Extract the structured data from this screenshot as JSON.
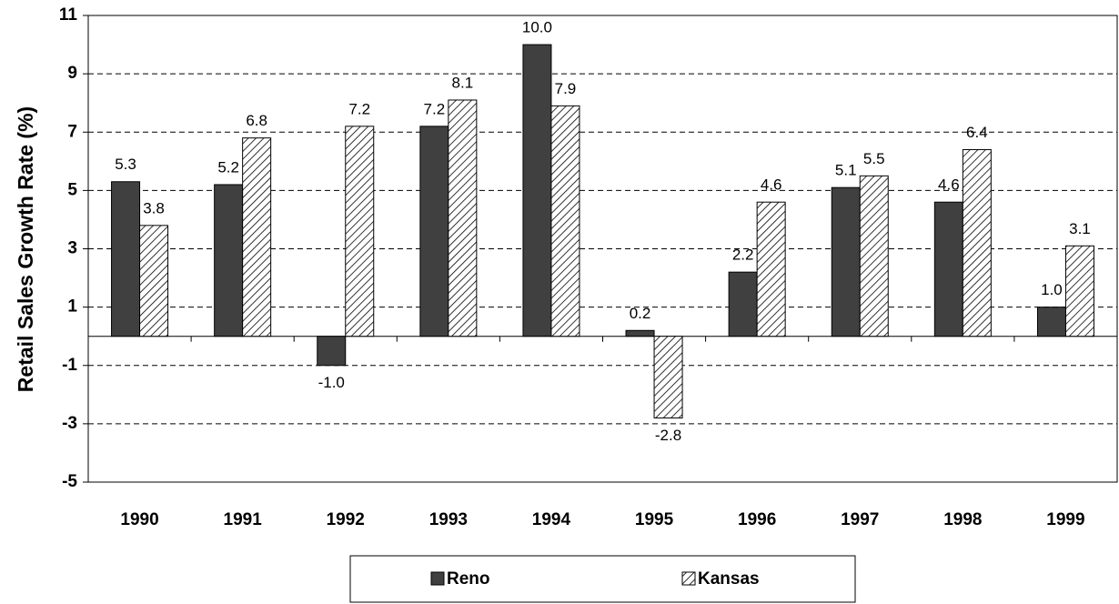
{
  "chart_data": {
    "type": "bar",
    "y_label": "Retail Sales Growth Rate (%)",
    "categories": [
      "1990",
      "1991",
      "1992",
      "1993",
      "1994",
      "1995",
      "1996",
      "1997",
      "1998",
      "1999"
    ],
    "series": [
      {
        "name": "Reno",
        "color": "#404040",
        "hatch": false,
        "values": [
          5.3,
          5.2,
          -1.0,
          7.2,
          10.0,
          0.2,
          2.2,
          5.1,
          4.6,
          1.0
        ],
        "value_labels": [
          "5.3",
          "5.2",
          "-1.0",
          "7.2",
          "10.0",
          "0.2",
          "2.2",
          "5.1",
          "4.6",
          "1.0"
        ]
      },
      {
        "name": "Kansas",
        "color": "#000000",
        "hatch": true,
        "values": [
          3.8,
          6.8,
          7.2,
          8.1,
          7.9,
          -2.8,
          4.6,
          5.5,
          6.4,
          3.1
        ],
        "value_labels": [
          "3.8",
          "6.8",
          "7.2",
          "8.1",
          "7.9",
          "-2.8",
          "4.6",
          "5.5",
          "6.4",
          "3.1"
        ]
      }
    ],
    "ylim": [
      -5,
      11
    ],
    "yticks": [
      -5,
      -3,
      -1,
      1,
      3,
      5,
      7,
      9,
      11
    ],
    "grid": true,
    "legend": "bottom"
  }
}
